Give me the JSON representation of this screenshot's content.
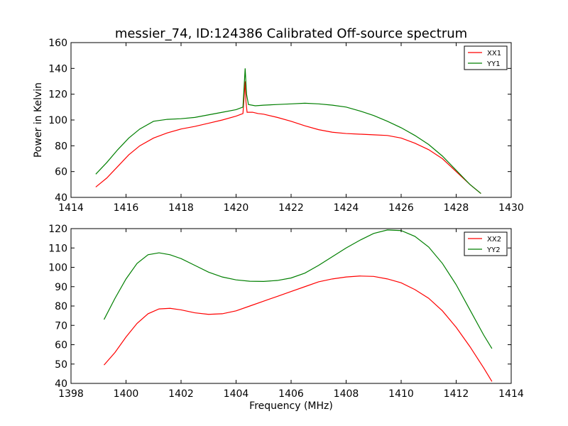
{
  "title": "messier_74, ID:124386 Calibrated Off-source spectrum",
  "colors": {
    "XX": "#ff0000",
    "YY": "#007f00"
  },
  "chart_data": [
    {
      "type": "line",
      "ylabel": "Power in Kelvin",
      "xlabel": "",
      "xlim": [
        1414,
        1430
      ],
      "ylim": [
        40,
        160
      ],
      "xticks": [
        "1414",
        "1416",
        "1418",
        "1420",
        "1422",
        "1424",
        "1426",
        "1428",
        "1430"
      ],
      "yticks": [
        "40",
        "60",
        "80",
        "100",
        "120",
        "140",
        "160"
      ],
      "legend_position": "top-right",
      "series": [
        {
          "name": "XX1",
          "color": "#ff0000",
          "points": [
            [
              1414.9,
              48
            ],
            [
              1415.3,
              55
            ],
            [
              1415.7,
              64
            ],
            [
              1416.1,
              73
            ],
            [
              1416.5,
              80
            ],
            [
              1417.0,
              86
            ],
            [
              1417.5,
              90
            ],
            [
              1418.0,
              93
            ],
            [
              1418.5,
              95
            ],
            [
              1419.0,
              97.5
            ],
            [
              1419.5,
              100
            ],
            [
              1420.0,
              103
            ],
            [
              1420.25,
              105
            ],
            [
              1420.33,
              130
            ],
            [
              1420.36,
              114
            ],
            [
              1420.4,
              106
            ],
            [
              1420.6,
              106
            ],
            [
              1420.8,
              105
            ],
            [
              1421.0,
              104.5
            ],
            [
              1421.5,
              102
            ],
            [
              1422.0,
              99
            ],
            [
              1422.5,
              95.5
            ],
            [
              1423.0,
              92.5
            ],
            [
              1423.5,
              90.5
            ],
            [
              1424.0,
              89.5
            ],
            [
              1424.5,
              89
            ],
            [
              1425.0,
              88.5
            ],
            [
              1425.5,
              88
            ],
            [
              1426.0,
              86
            ],
            [
              1426.5,
              82
            ],
            [
              1427.0,
              77
            ],
            [
              1427.5,
              70
            ],
            [
              1428.0,
              60
            ],
            [
              1428.5,
              50
            ],
            [
              1428.9,
              43
            ]
          ]
        },
        {
          "name": "YY1",
          "color": "#007f00",
          "points": [
            [
              1414.9,
              58
            ],
            [
              1415.3,
              67
            ],
            [
              1415.7,
              77
            ],
            [
              1416.1,
              86
            ],
            [
              1416.5,
              93
            ],
            [
              1417.0,
              99
            ],
            [
              1417.5,
              100.5
            ],
            [
              1418.0,
              101
            ],
            [
              1418.5,
              102
            ],
            [
              1419.0,
              104
            ],
            [
              1419.5,
              106
            ],
            [
              1420.0,
              108
            ],
            [
              1420.25,
              110
            ],
            [
              1420.33,
              140
            ],
            [
              1420.38,
              120
            ],
            [
              1420.45,
              112
            ],
            [
              1420.7,
              111
            ],
            [
              1421.0,
              111.5
            ],
            [
              1421.5,
              112
            ],
            [
              1422.0,
              112.5
            ],
            [
              1422.5,
              113
            ],
            [
              1423.0,
              112.5
            ],
            [
              1423.5,
              111.5
            ],
            [
              1424.0,
              110
            ],
            [
              1424.5,
              107
            ],
            [
              1425.0,
              103.5
            ],
            [
              1425.5,
              99
            ],
            [
              1426.0,
              94
            ],
            [
              1426.5,
              88
            ],
            [
              1427.0,
              81
            ],
            [
              1427.5,
              72
            ],
            [
              1428.0,
              61
            ],
            [
              1428.5,
              50
            ],
            [
              1428.9,
              43
            ]
          ]
        }
      ]
    },
    {
      "type": "line",
      "ylabel": "",
      "xlabel": "Frequency (MHz)",
      "xlim": [
        1398,
        1414
      ],
      "ylim": [
        40,
        120
      ],
      "xticks": [
        "1398",
        "1400",
        "1402",
        "1404",
        "1406",
        "1408",
        "1410",
        "1412",
        "1414"
      ],
      "yticks": [
        "40",
        "50",
        "60",
        "70",
        "80",
        "90",
        "100",
        "110",
        "120"
      ],
      "legend_position": "top-right",
      "series": [
        {
          "name": "XX2",
          "color": "#ff0000",
          "points": [
            [
              1399.2,
              49.5
            ],
            [
              1399.6,
              56
            ],
            [
              1400.0,
              64
            ],
            [
              1400.4,
              71
            ],
            [
              1400.8,
              76
            ],
            [
              1401.2,
              78.5
            ],
            [
              1401.6,
              78.8
            ],
            [
              1402.0,
              78
            ],
            [
              1402.5,
              76.5
            ],
            [
              1403.0,
              75.7
            ],
            [
              1403.5,
              76
            ],
            [
              1404.0,
              77.5
            ],
            [
              1404.5,
              80
            ],
            [
              1405.0,
              82.5
            ],
            [
              1405.5,
              85
            ],
            [
              1406.0,
              87.5
            ],
            [
              1406.5,
              90
            ],
            [
              1407.0,
              92.5
            ],
            [
              1407.5,
              94
            ],
            [
              1408.0,
              95
            ],
            [
              1408.5,
              95.5
            ],
            [
              1409.0,
              95.3
            ],
            [
              1409.5,
              94
            ],
            [
              1410.0,
              92
            ],
            [
              1410.5,
              88.5
            ],
            [
              1411.0,
              84
            ],
            [
              1411.5,
              77.5
            ],
            [
              1412.0,
              69
            ],
            [
              1412.5,
              59
            ],
            [
              1413.0,
              48
            ],
            [
              1413.3,
              41
            ]
          ]
        },
        {
          "name": "YY2",
          "color": "#007f00",
          "points": [
            [
              1399.2,
              73
            ],
            [
              1399.6,
              84
            ],
            [
              1400.0,
              94
            ],
            [
              1400.4,
              102
            ],
            [
              1400.8,
              106.5
            ],
            [
              1401.2,
              107.5
            ],
            [
              1401.6,
              106.5
            ],
            [
              1402.0,
              104.5
            ],
            [
              1402.5,
              101
            ],
            [
              1403.0,
              97.5
            ],
            [
              1403.5,
              95
            ],
            [
              1404.0,
              93.5
            ],
            [
              1404.5,
              92.8
            ],
            [
              1405.0,
              92.7
            ],
            [
              1405.5,
              93.2
            ],
            [
              1406.0,
              94.5
            ],
            [
              1406.5,
              97
            ],
            [
              1407.0,
              101
            ],
            [
              1407.5,
              105.5
            ],
            [
              1408.0,
              110
            ],
            [
              1408.5,
              114
            ],
            [
              1409.0,
              117.5
            ],
            [
              1409.5,
              119.3
            ],
            [
              1410.0,
              119
            ],
            [
              1410.5,
              116
            ],
            [
              1411.0,
              110.5
            ],
            [
              1411.5,
              102
            ],
            [
              1412.0,
              91
            ],
            [
              1412.5,
              78
            ],
            [
              1413.0,
              65
            ],
            [
              1413.3,
              58
            ]
          ]
        }
      ]
    }
  ]
}
